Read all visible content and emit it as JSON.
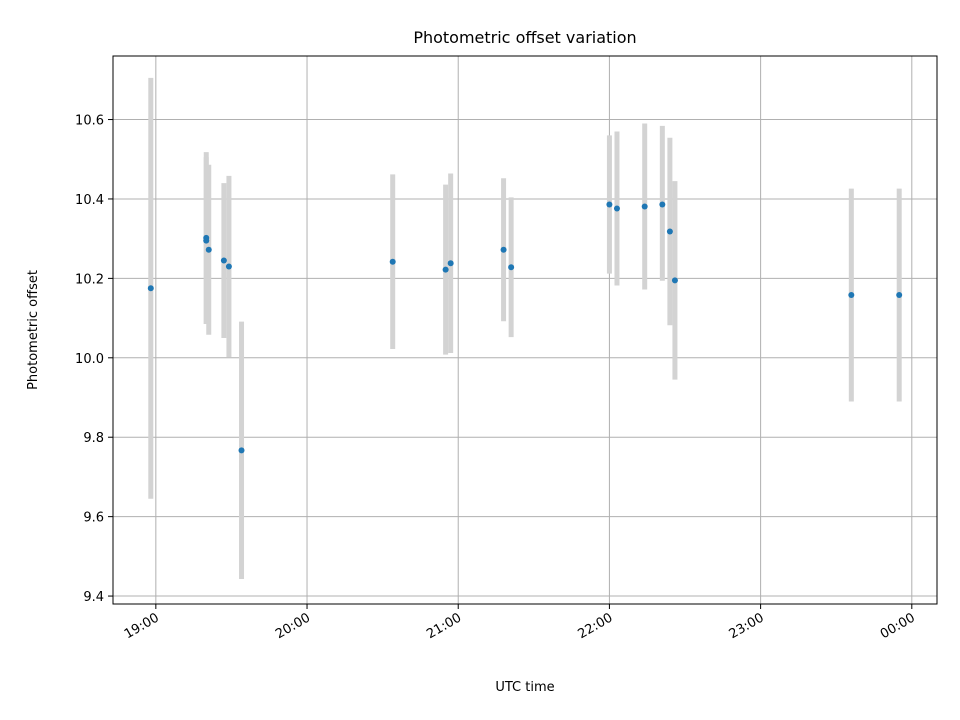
{
  "chart_data": {
    "type": "scatter",
    "title": "Photometric offset variation",
    "xlabel": "UTC time",
    "ylabel": "Photometric offset",
    "x_unit": "time of day (UTC)",
    "xlim": [
      "18:43",
      "00:10"
    ],
    "ylim": [
      9.38,
      10.76
    ],
    "grid": true,
    "x_ticks": [
      {
        "label": "19:00",
        "t": "19:00"
      },
      {
        "label": "20:00",
        "t": "20:00"
      },
      {
        "label": "21:00",
        "t": "21:00"
      },
      {
        "label": "22:00",
        "t": "22:00"
      },
      {
        "label": "23:00",
        "t": "23:00"
      },
      {
        "label": "00:00",
        "t": "00:00"
      }
    ],
    "y_ticks": [
      {
        "label": "9.4",
        "v": 9.4
      },
      {
        "label": "9.6",
        "v": 9.6
      },
      {
        "label": "9.8",
        "v": 9.8
      },
      {
        "label": "10.0",
        "v": 10.0
      },
      {
        "label": "10.2",
        "v": 10.2
      },
      {
        "label": "10.4",
        "v": 10.4
      },
      {
        "label": "10.6",
        "v": 10.6
      }
    ],
    "colors": {
      "points": "#1f77b4",
      "errorbars": "#d3d3d3",
      "grid": "#b0b0b0"
    },
    "points": [
      {
        "t": "18:58",
        "y": 10.175,
        "low": 9.645,
        "high": 10.705
      },
      {
        "t": "19:20",
        "y": 10.302,
        "low": 10.085,
        "high": 10.518
      },
      {
        "t": "19:20",
        "y": 10.295,
        "low": 10.085,
        "high": 10.505
      },
      {
        "t": "19:21",
        "y": 10.272,
        "low": 10.058,
        "high": 10.486
      },
      {
        "t": "19:27",
        "y": 10.245,
        "low": 10.05,
        "high": 10.44
      },
      {
        "t": "19:29",
        "y": 10.23,
        "low": 10.002,
        "high": 10.458
      },
      {
        "t": "19:34",
        "y": 9.767,
        "low": 9.443,
        "high": 10.091
      },
      {
        "t": "20:34",
        "y": 10.242,
        "low": 10.022,
        "high": 10.462
      },
      {
        "t": "20:55",
        "y": 10.222,
        "low": 10.008,
        "high": 10.436
      },
      {
        "t": "20:57",
        "y": 10.238,
        "low": 10.012,
        "high": 10.464
      },
      {
        "t": "21:18",
        "y": 10.272,
        "low": 10.092,
        "high": 10.452
      },
      {
        "t": "21:21",
        "y": 10.228,
        "low": 10.052,
        "high": 10.404
      },
      {
        "t": "22:00",
        "y": 10.386,
        "low": 10.212,
        "high": 10.56
      },
      {
        "t": "22:03",
        "y": 10.376,
        "low": 10.182,
        "high": 10.57
      },
      {
        "t": "22:14",
        "y": 10.381,
        "low": 10.172,
        "high": 10.59
      },
      {
        "t": "22:21",
        "y": 10.386,
        "low": 10.194,
        "high": 10.584
      },
      {
        "t": "22:24",
        "y": 10.318,
        "low": 10.082,
        "high": 10.554
      },
      {
        "t": "22:26",
        "y": 10.195,
        "low": 9.945,
        "high": 10.445
      },
      {
        "t": "23:36",
        "y": 10.158,
        "low": 9.89,
        "high": 10.426
      },
      {
        "t": "23:55",
        "y": 10.158,
        "low": 9.89,
        "high": 10.426
      }
    ]
  }
}
